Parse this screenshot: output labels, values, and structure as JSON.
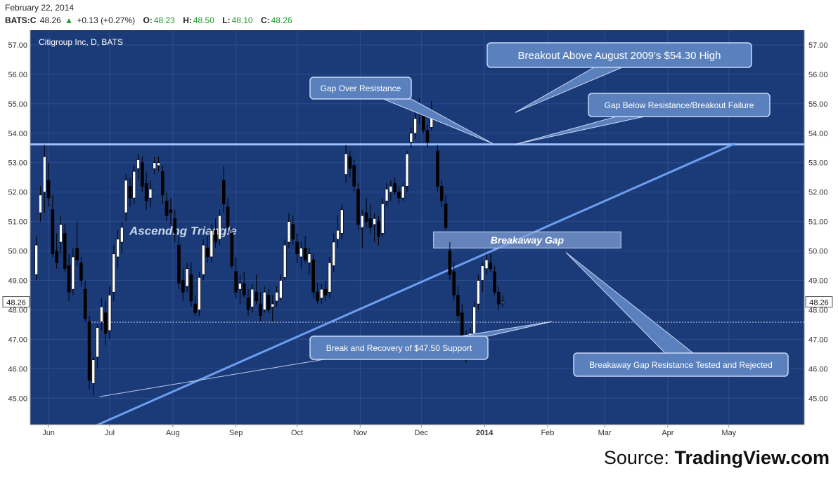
{
  "header": {
    "date": "February 22, 2014",
    "symbol": "BATS:C",
    "last": "48.26",
    "change": "+0.13 (+0.27%)",
    "open_label": "O:",
    "open": "48.23",
    "high_label": "H:",
    "high": "48.50",
    "low_label": "L:",
    "low": "48.10",
    "close_label": "C:",
    "close": "48.26"
  },
  "source": {
    "label": "Source:",
    "name": "TradingView.com"
  },
  "colors": {
    "background": "#1b3a78",
    "grid": "#2c4d8e",
    "candle_up": "#ffffff",
    "candle_down": "#000000",
    "trendline": "#6e9ef0",
    "callout_fill": "#5a81bd",
    "axis_text": "#333333"
  },
  "chart_data": {
    "type": "candlestick",
    "title": "Citigroup Inc, D, BATS",
    "last_price_tag": "48.26",
    "y_ticks": [
      "45.00",
      "46.00",
      "47.00",
      "48.00",
      "49.00",
      "50.00",
      "51.00",
      "52.00",
      "53.00",
      "54.00",
      "55.00",
      "56.00",
      "57.00"
    ],
    "y_range": [
      44.1,
      57.5
    ],
    "x_ticks": [
      {
        "label": "Jun",
        "day": 9
      },
      {
        "label": "Jul",
        "day": 39
      },
      {
        "label": "Aug",
        "day": 70
      },
      {
        "label": "Sep",
        "day": 101
      },
      {
        "label": "Oct",
        "day": 131
      },
      {
        "label": "Nov",
        "day": 162
      },
      {
        "label": "Dec",
        "day": 192
      },
      {
        "label": "2014",
        "day": 223
      },
      {
        "label": "Feb",
        "day": 254
      },
      {
        "label": "Mar",
        "day": 282
      },
      {
        "label": "Apr",
        "day": 313
      },
      {
        "label": "May",
        "day": 343
      }
    ],
    "x_range_days": [
      0,
      380
    ],
    "resistance_level": 53.62,
    "support_level": 47.58,
    "trendlines": [
      {
        "name": "ascending-support",
        "from": [
          30,
          44.0
        ],
        "to": [
          346,
          53.65
        ]
      },
      {
        "name": "thin-trendline",
        "from": [
          34,
          45.05
        ],
        "to": [
          256,
          47.6
        ]
      }
    ],
    "gap_box": {
      "label": "Breakaway Gap",
      "day_from": 198,
      "day_to": 290,
      "price_from": 50.1,
      "price_to": 50.65
    },
    "pattern_label": "Ascendng Triangle",
    "annotations": [
      {
        "text": "Breakout Above August 2009's $54.30 High",
        "target_day": 238,
        "target_price": 54.7
      },
      {
        "text": "Gap Over Resistance",
        "target_day": 227,
        "target_price": 53.65
      },
      {
        "text": "Gap Below Resistance/Breakout Failure",
        "target_day": 238,
        "target_price": 53.62
      },
      {
        "text": "Break and Recovery of $47.50 Support",
        "target_day": 256,
        "target_price": 47.6
      },
      {
        "text": "Breakaway Gap Resistance Tested and Rejected",
        "target_day": 263,
        "target_price": 49.95
      }
    ],
    "candles": [
      {
        "d": 3,
        "o": 49.2,
        "h": 50.5,
        "l": 49.0,
        "c": 50.2
      },
      {
        "d": 5,
        "o": 51.3,
        "h": 52.2,
        "l": 51.0,
        "c": 51.9
      },
      {
        "d": 7,
        "o": 52.0,
        "h": 53.6,
        "l": 51.3,
        "c": 53.2
      },
      {
        "d": 9,
        "o": 52.4,
        "h": 53.0,
        "l": 51.5,
        "c": 51.8
      },
      {
        "d": 11,
        "o": 51.4,
        "h": 51.9,
        "l": 49.8,
        "c": 49.9
      },
      {
        "d": 13,
        "o": 50.0,
        "h": 50.6,
        "l": 49.4,
        "c": 49.6
      },
      {
        "d": 15,
        "o": 50.3,
        "h": 51.2,
        "l": 49.9,
        "c": 50.9
      },
      {
        "d": 17,
        "o": 50.6,
        "h": 50.9,
        "l": 49.3,
        "c": 49.4
      },
      {
        "d": 19,
        "o": 49.5,
        "h": 49.9,
        "l": 48.3,
        "c": 48.6
      },
      {
        "d": 21,
        "o": 48.7,
        "h": 50.1,
        "l": 48.5,
        "c": 49.8
      },
      {
        "d": 23,
        "o": 50.1,
        "h": 51.0,
        "l": 49.5,
        "c": 49.7
      },
      {
        "d": 25,
        "o": 49.6,
        "h": 49.8,
        "l": 48.8,
        "c": 49.0
      },
      {
        "d": 27,
        "o": 48.7,
        "h": 49.0,
        "l": 47.6,
        "c": 47.7
      },
      {
        "d": 29,
        "o": 47.6,
        "h": 47.8,
        "l": 45.3,
        "c": 45.6
      },
      {
        "d": 31,
        "o": 45.5,
        "h": 46.4,
        "l": 45.1,
        "c": 46.3
      },
      {
        "d": 33,
        "o": 46.4,
        "h": 47.5,
        "l": 46.0,
        "c": 47.4
      },
      {
        "d": 35,
        "o": 47.6,
        "h": 48.4,
        "l": 47.3,
        "c": 48.1
      },
      {
        "d": 37,
        "o": 47.9,
        "h": 48.3,
        "l": 46.8,
        "c": 47.2
      },
      {
        "d": 39,
        "o": 47.3,
        "h": 48.8,
        "l": 47.0,
        "c": 48.5
      },
      {
        "d": 41,
        "o": 48.6,
        "h": 50.2,
        "l": 48.3,
        "c": 49.9
      },
      {
        "d": 43,
        "o": 49.8,
        "h": 50.7,
        "l": 49.4,
        "c": 50.4
      },
      {
        "d": 45,
        "o": 50.3,
        "h": 51.0,
        "l": 49.9,
        "c": 50.8
      },
      {
        "d": 47,
        "o": 51.3,
        "h": 52.6,
        "l": 51.0,
        "c": 52.4
      },
      {
        "d": 49,
        "o": 52.2,
        "h": 52.5,
        "l": 51.5,
        "c": 51.8
      },
      {
        "d": 51,
        "o": 51.8,
        "h": 52.9,
        "l": 51.6,
        "c": 52.7
      },
      {
        "d": 53,
        "o": 52.8,
        "h": 53.3,
        "l": 52.4,
        "c": 53.1
      },
      {
        "d": 55,
        "o": 53.0,
        "h": 53.2,
        "l": 52.0,
        "c": 52.2
      },
      {
        "d": 57,
        "o": 52.3,
        "h": 52.7,
        "l": 51.4,
        "c": 51.7
      },
      {
        "d": 59,
        "o": 51.8,
        "h": 52.4,
        "l": 51.5,
        "c": 52.1
      },
      {
        "d": 61,
        "o": 52.8,
        "h": 53.2,
        "l": 52.6,
        "c": 53.0
      },
      {
        "d": 63,
        "o": 52.9,
        "h": 53.2,
        "l": 52.7,
        "c": 53.0
      },
      {
        "d": 65,
        "o": 52.7,
        "h": 52.9,
        "l": 51.6,
        "c": 51.9
      },
      {
        "d": 67,
        "o": 51.7,
        "h": 52.0,
        "l": 51.0,
        "c": 51.2
      },
      {
        "d": 69,
        "o": 51.4,
        "h": 51.8,
        "l": 50.9,
        "c": 51.3
      },
      {
        "d": 71,
        "o": 51.1,
        "h": 51.4,
        "l": 50.3,
        "c": 50.6
      },
      {
        "d": 73,
        "o": 50.2,
        "h": 50.5,
        "l": 48.7,
        "c": 48.9
      },
      {
        "d": 75,
        "o": 49.0,
        "h": 49.4,
        "l": 48.3,
        "c": 48.6
      },
      {
        "d": 77,
        "o": 48.8,
        "h": 49.6,
        "l": 48.6,
        "c": 49.4
      },
      {
        "d": 79,
        "o": 49.2,
        "h": 49.6,
        "l": 48.1,
        "c": 48.3
      },
      {
        "d": 81,
        "o": 48.2,
        "h": 48.5,
        "l": 47.8,
        "c": 47.9
      },
      {
        "d": 83,
        "o": 48.0,
        "h": 49.3,
        "l": 47.8,
        "c": 49.1
      },
      {
        "d": 85,
        "o": 49.2,
        "h": 50.4,
        "l": 49.0,
        "c": 50.2
      },
      {
        "d": 87,
        "o": 50.1,
        "h": 50.5,
        "l": 49.6,
        "c": 49.8
      },
      {
        "d": 89,
        "o": 49.8,
        "h": 50.9,
        "l": 49.6,
        "c": 50.7
      },
      {
        "d": 91,
        "o": 50.7,
        "h": 51.1,
        "l": 50.1,
        "c": 50.3
      },
      {
        "d": 93,
        "o": 50.4,
        "h": 51.4,
        "l": 50.2,
        "c": 51.2
      },
      {
        "d": 95,
        "o": 52.4,
        "h": 52.9,
        "l": 51.3,
        "c": 51.6
      },
      {
        "d": 97,
        "o": 51.5,
        "h": 51.8,
        "l": 50.6,
        "c": 50.8
      },
      {
        "d": 99,
        "o": 50.6,
        "h": 50.8,
        "l": 49.4,
        "c": 49.5
      },
      {
        "d": 101,
        "o": 49.3,
        "h": 49.8,
        "l": 48.4,
        "c": 48.6
      },
      {
        "d": 103,
        "o": 48.7,
        "h": 49.2,
        "l": 48.2,
        "c": 48.9
      },
      {
        "d": 105,
        "o": 48.9,
        "h": 49.3,
        "l": 48.4,
        "c": 48.5
      },
      {
        "d": 107,
        "o": 48.4,
        "h": 48.7,
        "l": 47.8,
        "c": 48.0
      },
      {
        "d": 109,
        "o": 48.1,
        "h": 48.9,
        "l": 47.9,
        "c": 48.7
      },
      {
        "d": 111,
        "o": 48.6,
        "h": 49.2,
        "l": 48.2,
        "c": 48.3
      },
      {
        "d": 113,
        "o": 48.2,
        "h": 48.6,
        "l": 47.6,
        "c": 47.8
      },
      {
        "d": 115,
        "o": 48.0,
        "h": 48.8,
        "l": 47.9,
        "c": 48.6
      },
      {
        "d": 117,
        "o": 48.5,
        "h": 48.7,
        "l": 47.9,
        "c": 48.0
      },
      {
        "d": 119,
        "o": 48.1,
        "h": 48.5,
        "l": 47.6,
        "c": 48.2
      },
      {
        "d": 121,
        "o": 48.3,
        "h": 48.8,
        "l": 48.1,
        "c": 48.6
      },
      {
        "d": 123,
        "o": 48.4,
        "h": 49.2,
        "l": 48.3,
        "c": 49.0
      },
      {
        "d": 125,
        "o": 49.1,
        "h": 50.4,
        "l": 49.0,
        "c": 50.2
      },
      {
        "d": 127,
        "o": 50.3,
        "h": 51.3,
        "l": 50.1,
        "c": 51.0
      },
      {
        "d": 129,
        "o": 50.9,
        "h": 51.2,
        "l": 50.2,
        "c": 50.4
      },
      {
        "d": 131,
        "o": 50.3,
        "h": 50.6,
        "l": 49.6,
        "c": 49.9
      },
      {
        "d": 133,
        "o": 49.8,
        "h": 50.3,
        "l": 49.4,
        "c": 50.1
      },
      {
        "d": 135,
        "o": 50.1,
        "h": 50.5,
        "l": 49.6,
        "c": 49.7
      },
      {
        "d": 137,
        "o": 49.6,
        "h": 50.1,
        "l": 49.2,
        "c": 49.9
      },
      {
        "d": 139,
        "o": 49.7,
        "h": 49.9,
        "l": 48.4,
        "c": 48.6
      },
      {
        "d": 141,
        "o": 48.6,
        "h": 48.9,
        "l": 48.2,
        "c": 48.3
      },
      {
        "d": 143,
        "o": 48.4,
        "h": 48.9,
        "l": 48.2,
        "c": 48.7
      },
      {
        "d": 145,
        "o": 48.7,
        "h": 49.0,
        "l": 48.3,
        "c": 48.5
      },
      {
        "d": 147,
        "o": 48.6,
        "h": 49.8,
        "l": 48.4,
        "c": 49.6
      },
      {
        "d": 149,
        "o": 49.5,
        "h": 50.6,
        "l": 49.3,
        "c": 50.3
      },
      {
        "d": 151,
        "o": 50.4,
        "h": 51.2,
        "l": 50.1,
        "c": 50.7
      },
      {
        "d": 153,
        "o": 50.6,
        "h": 51.6,
        "l": 50.4,
        "c": 51.4
      },
      {
        "d": 155,
        "o": 52.6,
        "h": 53.6,
        "l": 52.3,
        "c": 53.3
      },
      {
        "d": 157,
        "o": 53.2,
        "h": 53.4,
        "l": 52.5,
        "c": 52.8
      },
      {
        "d": 159,
        "o": 52.9,
        "h": 53.1,
        "l": 52.0,
        "c": 52.2
      },
      {
        "d": 161,
        "o": 52.1,
        "h": 52.3,
        "l": 50.7,
        "c": 50.9
      },
      {
        "d": 163,
        "o": 50.8,
        "h": 51.4,
        "l": 50.1,
        "c": 51.2
      },
      {
        "d": 165,
        "o": 51.3,
        "h": 51.8,
        "l": 50.8,
        "c": 51.0
      },
      {
        "d": 167,
        "o": 51.1,
        "h": 51.6,
        "l": 50.6,
        "c": 50.8
      },
      {
        "d": 169,
        "o": 50.9,
        "h": 51.3,
        "l": 50.3,
        "c": 51.1
      },
      {
        "d": 171,
        "o": 51.0,
        "h": 51.2,
        "l": 50.2,
        "c": 50.5
      },
      {
        "d": 173,
        "o": 50.6,
        "h": 51.8,
        "l": 50.5,
        "c": 51.6
      },
      {
        "d": 175,
        "o": 51.7,
        "h": 52.3,
        "l": 51.5,
        "c": 52.1
      },
      {
        "d": 177,
        "o": 52.0,
        "h": 52.4,
        "l": 51.7,
        "c": 52.2
      },
      {
        "d": 179,
        "o": 52.3,
        "h": 52.5,
        "l": 51.9,
        "c": 52.0
      },
      {
        "d": 181,
        "o": 52.0,
        "h": 52.2,
        "l": 51.6,
        "c": 51.8
      },
      {
        "d": 183,
        "o": 51.8,
        "h": 52.3,
        "l": 51.7,
        "c": 52.2
      },
      {
        "d": 185,
        "o": 52.2,
        "h": 53.4,
        "l": 52.0,
        "c": 53.3
      },
      {
        "d": 187,
        "o": 53.7,
        "h": 54.2,
        "l": 53.5,
        "c": 54.0
      },
      {
        "d": 189,
        "o": 54.0,
        "h": 54.7,
        "l": 53.8,
        "c": 54.5
      },
      {
        "d": 191,
        "o": 54.6,
        "h": 55.2,
        "l": 54.3,
        "c": 54.6
      },
      {
        "d": 193,
        "o": 54.6,
        "h": 54.9,
        "l": 54.0,
        "c": 54.1
      },
      {
        "d": 195,
        "o": 54.1,
        "h": 54.3,
        "l": 53.5,
        "c": 53.7
      },
      {
        "d": 197,
        "o": 54.2,
        "h": 55.1,
        "l": 54.1,
        "c": 54.8
      },
      {
        "d": 200,
        "o": 53.4,
        "h": 53.6,
        "l": 52.0,
        "c": 52.2
      },
      {
        "d": 202,
        "o": 52.2,
        "h": 52.4,
        "l": 51.5,
        "c": 51.7
      },
      {
        "d": 204,
        "o": 51.6,
        "h": 51.9,
        "l": 50.7,
        "c": 50.8
      },
      {
        "d": 206,
        "o": 50.0,
        "h": 50.3,
        "l": 49.0,
        "c": 49.2
      },
      {
        "d": 208,
        "o": 49.3,
        "h": 49.6,
        "l": 48.3,
        "c": 48.5
      },
      {
        "d": 210,
        "o": 48.5,
        "h": 48.8,
        "l": 47.6,
        "c": 47.8
      },
      {
        "d": 212,
        "o": 47.9,
        "h": 48.2,
        "l": 46.8,
        "c": 47.0
      },
      {
        "d": 214,
        "o": 47.0,
        "h": 47.3,
        "l": 46.2,
        "c": 46.3
      },
      {
        "d": 216,
        "o": 46.4,
        "h": 47.4,
        "l": 46.3,
        "c": 47.2
      },
      {
        "d": 218,
        "o": 47.2,
        "h": 48.3,
        "l": 47.0,
        "c": 48.1
      },
      {
        "d": 220,
        "o": 48.2,
        "h": 49.2,
        "l": 48.0,
        "c": 49.0
      },
      {
        "d": 222,
        "o": 49.0,
        "h": 49.6,
        "l": 48.6,
        "c": 49.5
      },
      {
        "d": 224,
        "o": 49.4,
        "h": 49.9,
        "l": 49.2,
        "c": 49.7
      },
      {
        "d": 226,
        "o": 49.6,
        "h": 49.9,
        "l": 49.3,
        "c": 49.4
      },
      {
        "d": 228,
        "o": 49.3,
        "h": 49.5,
        "l": 48.5,
        "c": 48.6
      },
      {
        "d": 230,
        "o": 48.6,
        "h": 48.8,
        "l": 48.0,
        "c": 48.2
      },
      {
        "d": 232,
        "o": 48.23,
        "h": 48.5,
        "l": 48.1,
        "c": 48.26
      }
    ]
  }
}
